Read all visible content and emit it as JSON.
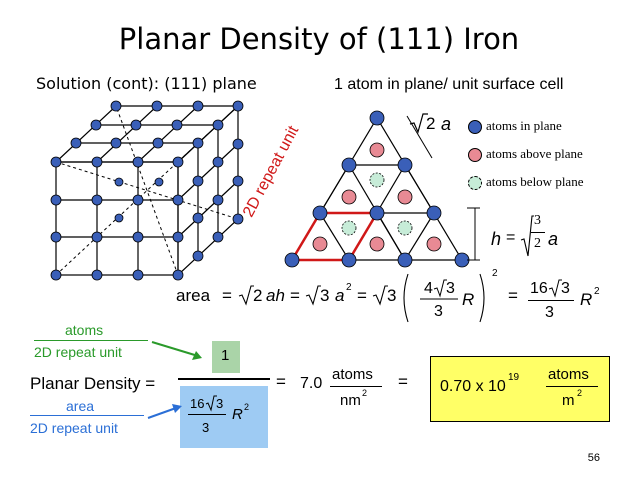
{
  "title": "Planar Density of (111) Iron",
  "subtitle": "Solution (cont):  (111) plane",
  "plane_caption": "1 atom in plane/ unit surface cell",
  "legend": {
    "in_plane": "atoms in plane",
    "above_plane": "atoms above plane",
    "below_plane": "atoms below plane"
  },
  "colors": {
    "in_plane": "#3a5fb8",
    "above_plane": "#e88a94",
    "below_plane": "#c7ecd8",
    "repeat_unit": "#d01818",
    "blue_text": "#2b6fd6",
    "green_text": "#2a9a2a",
    "highlight_yellow": "#ffff66",
    "highlight_blue": "#9ecbf3",
    "highlight_green": "#aad4a8"
  },
  "labels": {
    "sqrt2": "2",
    "a": "a",
    "repeat_unit": "2D repeat unit",
    "h": "h",
    "h_eq": "=",
    "h_num": "3",
    "h_den": "2",
    "h_a": "a"
  },
  "area_equation": {
    "area": "area",
    "eq": "=",
    "sqrt2": "2",
    "ah": "ah",
    "sqrt3": "3",
    "a": "a",
    "sq": "2",
    "frac_num": "4",
    "frac_num_sqrt": "3",
    "frac_den": "3",
    "R": "R",
    "frac2_num": "16",
    "frac2_num_sqrt": "3",
    "frac2_den": "3",
    "R2": "R",
    "R2_exp": "2"
  },
  "planar": {
    "atoms_label": "atoms",
    "repeat_label_1": "2D repeat unit",
    "area_label": "area",
    "repeat_label_2": "2D repeat unit",
    "planar_density": "Planar Density =",
    "numerator": "1",
    "den_num": "16",
    "den_sqrt": "3",
    "den_den": "3",
    "den_R": "R",
    "den_exp": "2",
    "eq1": "=",
    "value": "7.0",
    "unit_num": "atoms",
    "unit_den": "nm",
    "unit_exp": "2",
    "eq2": "=",
    "result": "0.70 x 10",
    "result_exp": "19",
    "result_unit_num": "atoms",
    "result_unit_den": "m",
    "result_unit_exp": "2"
  },
  "page_number": "56"
}
